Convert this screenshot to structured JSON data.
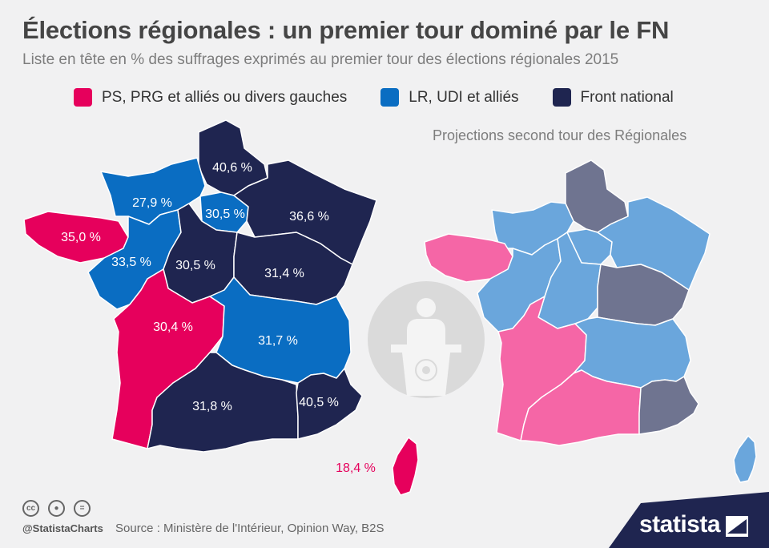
{
  "title": "Élections régionales : un premier tour dominé par le FN",
  "subtitle": "Liste en tête en % des suffrages exprimés au premier tour des élections régionales 2015",
  "legend": [
    {
      "label": "PS, PRG et alliés ou divers gauches",
      "color": "#e6005c"
    },
    {
      "label": "LR, UDI et alliés",
      "color": "#0a6dc2"
    },
    {
      "label": "Front national",
      "color": "#1f2550"
    }
  ],
  "projection_title": "Projections second tour des Régionales",
  "first_round_labels": {
    "nord": "40,6 %",
    "normandie": "27,9 %",
    "idf": "30,5 %",
    "est": "36,6 %",
    "bretagne": "35,0 %",
    "pays_loire": "33,5 %",
    "centre": "30,5 %",
    "bourgogne": "31,4 %",
    "aquitaine": "30,4 %",
    "rhone_alpes": "31,7 %",
    "midi": "31,8 %",
    "paca": "40,5 %",
    "corse": "18,4 %"
  },
  "projection_colors": {
    "left": "#f566a6",
    "right": "#6aa6dc",
    "fn": "#6f7490"
  },
  "footer": {
    "handle": "@StatistaCharts",
    "source": "Source : Ministère de l'Intérieur, Opinion Way, B2S",
    "brand": "statista"
  },
  "icons": [
    "cc-icon",
    "by-icon",
    "nd-icon",
    "politician-icon",
    "statista-logo-icon"
  ]
}
